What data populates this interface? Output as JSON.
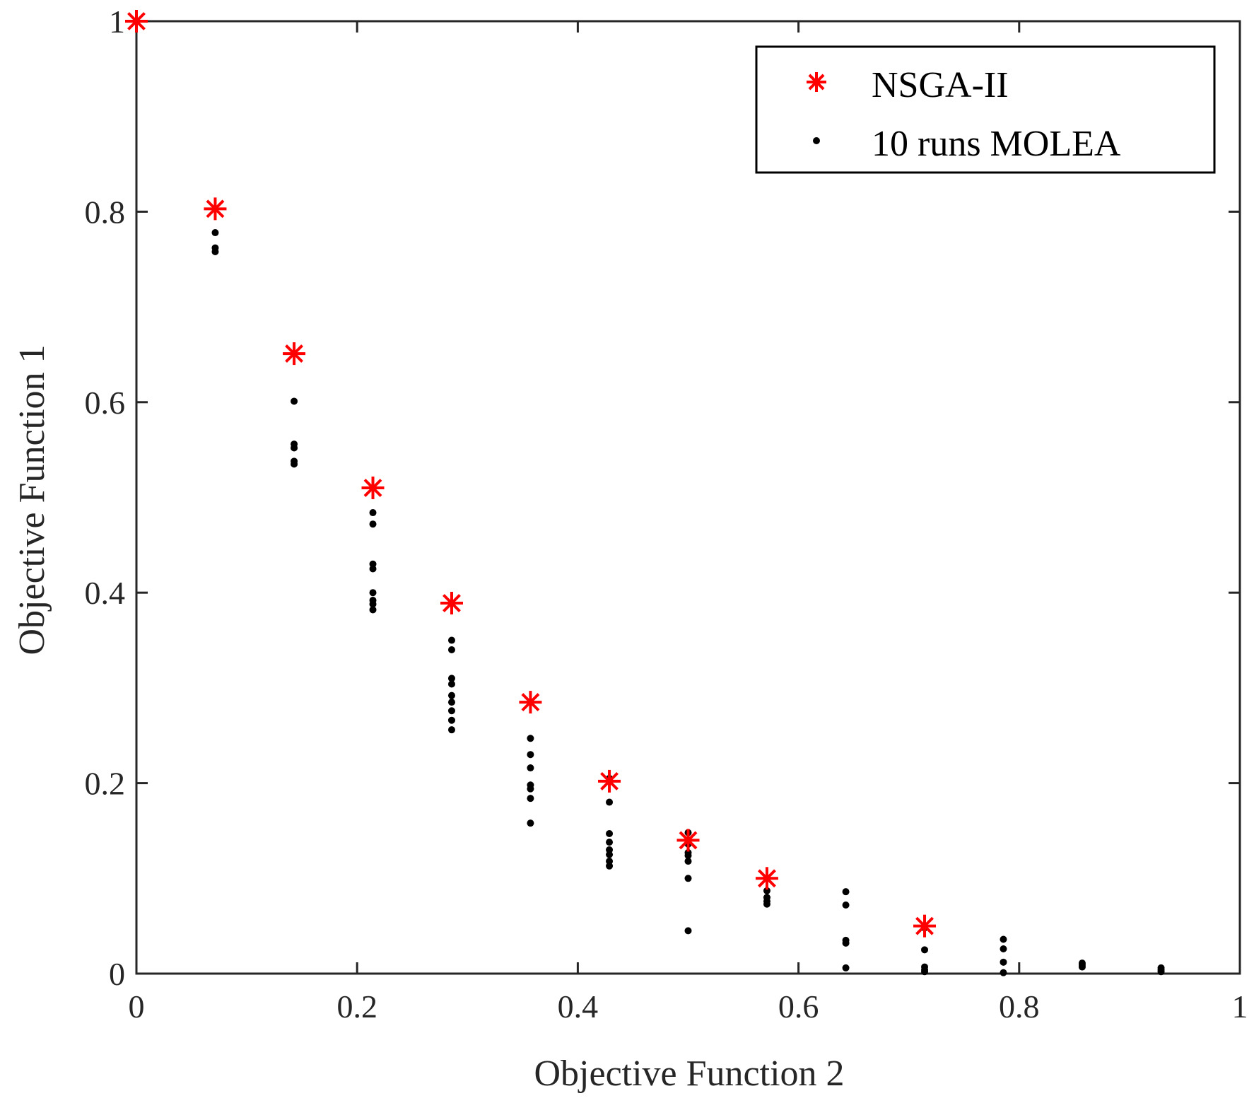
{
  "chart_data": {
    "type": "scatter",
    "title": "",
    "xlabel": "Objective Function 2",
    "ylabel": "Objective Function 1",
    "xlim": [
      0,
      1
    ],
    "ylim": [
      0,
      1
    ],
    "xticks": [
      "0",
      "0.2",
      "0.4",
      "0.6",
      "0.8",
      "1"
    ],
    "yticks": [
      "0",
      "0.2",
      "0.4",
      "0.6",
      "0.8",
      "1"
    ],
    "xtick_values": [
      0,
      0.2,
      0.4,
      0.6,
      0.8,
      1
    ],
    "ytick_values": [
      0,
      0.2,
      0.4,
      0.6,
      0.8,
      1
    ],
    "grid": false,
    "legend_position": "top-right",
    "series": [
      {
        "name": "NSGA-II",
        "marker": "asterisk",
        "color": "#ff0000",
        "points": [
          [
            0,
            1.0
          ],
          [
            0.0714,
            0.803
          ],
          [
            0.1429,
            0.651
          ],
          [
            0.2143,
            0.51
          ],
          [
            0.2857,
            0.389
          ],
          [
            0.3571,
            0.285
          ],
          [
            0.4286,
            0.202
          ],
          [
            0.5,
            0.14
          ],
          [
            0.5714,
            0.1
          ],
          [
            0.7143,
            0.05
          ]
        ]
      },
      {
        "name": "10 runs MOLEA",
        "marker": "dot",
        "color": "#000000",
        "points": [
          [
            0,
            1.0
          ],
          [
            0.0714,
            0.778
          ],
          [
            0.0714,
            0.762
          ],
          [
            0.0714,
            0.758
          ],
          [
            0.1429,
            0.601
          ],
          [
            0.1429,
            0.556
          ],
          [
            0.1429,
            0.552
          ],
          [
            0.1429,
            0.538
          ],
          [
            0.1429,
            0.535
          ],
          [
            0.2143,
            0.484
          ],
          [
            0.2143,
            0.472
          ],
          [
            0.2143,
            0.43
          ],
          [
            0.2143,
            0.425
          ],
          [
            0.2143,
            0.4
          ],
          [
            0.2143,
            0.392
          ],
          [
            0.2143,
            0.388
          ],
          [
            0.2143,
            0.382
          ],
          [
            0.2857,
            0.35
          ],
          [
            0.2857,
            0.34
          ],
          [
            0.2857,
            0.31
          ],
          [
            0.2857,
            0.304
          ],
          [
            0.2857,
            0.292
          ],
          [
            0.2857,
            0.285
          ],
          [
            0.2857,
            0.276
          ],
          [
            0.2857,
            0.266
          ],
          [
            0.2857,
            0.256
          ],
          [
            0.3571,
            0.247
          ],
          [
            0.3571,
            0.23
          ],
          [
            0.3571,
            0.216
          ],
          [
            0.3571,
            0.198
          ],
          [
            0.3571,
            0.194
          ],
          [
            0.3571,
            0.184
          ],
          [
            0.3571,
            0.158
          ],
          [
            0.4286,
            0.205
          ],
          [
            0.4286,
            0.18
          ],
          [
            0.4286,
            0.147
          ],
          [
            0.4286,
            0.138
          ],
          [
            0.4286,
            0.13
          ],
          [
            0.4286,
            0.125
          ],
          [
            0.4286,
            0.118
          ],
          [
            0.4286,
            0.113
          ],
          [
            0.5,
            0.148
          ],
          [
            0.5,
            0.14
          ],
          [
            0.5,
            0.136
          ],
          [
            0.5,
            0.127
          ],
          [
            0.5,
            0.124
          ],
          [
            0.5,
            0.118
          ],
          [
            0.5,
            0.1
          ],
          [
            0.5,
            0.045
          ],
          [
            0.5714,
            0.1
          ],
          [
            0.5714,
            0.087
          ],
          [
            0.5714,
            0.08
          ],
          [
            0.5714,
            0.076
          ],
          [
            0.5714,
            0.073
          ],
          [
            0.6429,
            0.086
          ],
          [
            0.6429,
            0.072
          ],
          [
            0.6429,
            0.035
          ],
          [
            0.6429,
            0.032
          ],
          [
            0.6429,
            0.006
          ],
          [
            0.7143,
            0.048
          ],
          [
            0.7143,
            0.025
          ],
          [
            0.7143,
            0.007
          ],
          [
            0.7143,
            0.004
          ],
          [
            0.7143,
            0.002
          ],
          [
            0.7857,
            0.036
          ],
          [
            0.7857,
            0.026
          ],
          [
            0.7857,
            0.012
          ],
          [
            0.7857,
            0.001
          ],
          [
            0.8571,
            0.011
          ],
          [
            0.8571,
            0.009
          ],
          [
            0.8571,
            0.007
          ],
          [
            0.9286,
            0.006
          ],
          [
            0.9286,
            0.004
          ],
          [
            0.9286,
            0.002
          ]
        ]
      }
    ]
  }
}
